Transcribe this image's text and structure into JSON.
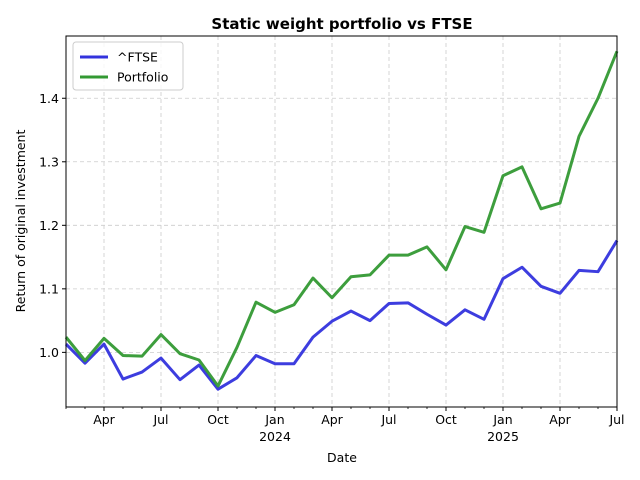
{
  "chart_data": {
    "type": "line",
    "title": "Static weight portfolio vs FTSE",
    "xlabel": "Date",
    "ylabel": "Return of original investment",
    "x": [
      "2023-02",
      "2023-03",
      "2023-04",
      "2023-05",
      "2023-06",
      "2023-07",
      "2023-08",
      "2023-09",
      "2023-10",
      "2023-11",
      "2023-12",
      "2024-01",
      "2024-02",
      "2024-03",
      "2024-04",
      "2024-05",
      "2024-06",
      "2024-07",
      "2024-08",
      "2024-09",
      "2024-10",
      "2024-11",
      "2024-12",
      "2025-01",
      "2025-02",
      "2025-03",
      "2025-04",
      "2025-05",
      "2025-06",
      "2025-07"
    ],
    "series": [
      {
        "name": "^FTSE",
        "color": "#3333dd",
        "values": [
          1.013,
          0.983,
          1.013,
          0.958,
          0.969,
          0.991,
          0.957,
          0.98,
          0.942,
          0.96,
          0.995,
          0.982,
          0.982,
          1.024,
          1.049,
          1.065,
          1.05,
          1.077,
          1.078,
          1.06,
          1.043,
          1.067,
          1.052,
          1.116,
          1.134,
          1.104,
          1.093,
          1.129,
          1.127,
          1.176
        ]
      },
      {
        "name": "Portfolio",
        "color": "#339933",
        "values": [
          1.024,
          0.987,
          1.022,
          0.995,
          0.994,
          1.028,
          0.998,
          0.988,
          0.947,
          1.008,
          1.079,
          1.063,
          1.075,
          1.117,
          1.086,
          1.119,
          1.122,
          1.153,
          1.153,
          1.166,
          1.13,
          1.198,
          1.189,
          1.278,
          1.292,
          1.226,
          1.235,
          1.34,
          1.4,
          1.474
        ]
      }
    ],
    "ylim": [
      0.914,
      1.498
    ],
    "yticks": [
      "1.0",
      "1.1",
      "1.2",
      "1.3",
      "1.4"
    ],
    "ytick_values": [
      1.0,
      1.1,
      1.2,
      1.3,
      1.4
    ],
    "xticks": [
      {
        "date": "2023-04",
        "label": "Apr",
        "sublabel": ""
      },
      {
        "date": "2023-07",
        "label": "Jul",
        "sublabel": ""
      },
      {
        "date": "2023-10",
        "label": "Oct",
        "sublabel": ""
      },
      {
        "date": "2024-01",
        "label": "Jan",
        "sublabel": "2024"
      },
      {
        "date": "2024-04",
        "label": "Apr",
        "sublabel": ""
      },
      {
        "date": "2024-07",
        "label": "Jul",
        "sublabel": ""
      },
      {
        "date": "2024-10",
        "label": "Oct",
        "sublabel": ""
      },
      {
        "date": "2025-01",
        "label": "Jan",
        "sublabel": "2025"
      },
      {
        "date": "2025-04",
        "label": "Apr",
        "sublabel": ""
      },
      {
        "date": "2025-07",
        "label": "Jul",
        "sublabel": ""
      }
    ],
    "grid": true,
    "legend_position": "top-left"
  }
}
